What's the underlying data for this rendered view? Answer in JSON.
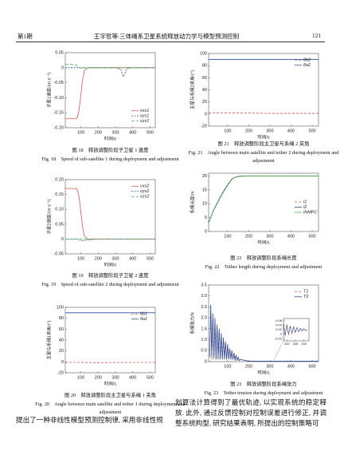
{
  "header": {
    "issue": "第1期",
    "running_title": "王宇哲等:三体绳系卫星系统释放动力学与模型预测控制",
    "page": "121"
  },
  "body_text": {
    "left": "提出了一种非线性模型预测控制律, 采用非线性规",
    "right": "划算法计算得到了最优轨迹, 以实现系统的稳定释放. 此外, 通过反馈控制对控制误差进行修正, 并调整系统构型. 研究结果表明, 所提出的控制策略可"
  },
  "chart_data": [
    {
      "type": "line",
      "xlabel": "时间/s",
      "ylabel": "子星1速度/(m·s⁻¹)",
      "xlim": [
        10,
        530
      ],
      "ylim": [
        -0.2,
        0.05
      ],
      "xticks": [
        100,
        200,
        300,
        400,
        500
      ],
      "yticks": [
        0.05,
        0,
        -0.05,
        {
          "value": -0.1,
          "label": "-0.10"
        },
        -0.15,
        {
          "value": -0.2,
          "label": "-0.20"
        }
      ],
      "legend": "lower right",
      "x": [
        10,
        40,
        70,
        80,
        90,
        100,
        110,
        120,
        140,
        200,
        300,
        330,
        345,
        355,
        365,
        380,
        420,
        530
      ],
      "series": [
        {
          "name": "vxs1",
          "color": "#d9534f",
          "values": [
            -0.17,
            -0.17,
            -0.17,
            -0.165,
            -0.14,
            -0.09,
            -0.04,
            -0.01,
            0,
            0,
            0,
            0,
            0,
            0,
            0,
            0,
            0,
            0
          ]
        },
        {
          "name": "vys1",
          "color": "#2c4f9e",
          "dash": "2,1.5",
          "values": [
            0,
            0,
            0,
            0,
            0,
            0,
            0,
            0,
            0,
            0,
            0,
            -0.005,
            -0.03,
            -0.02,
            -0.005,
            0,
            0,
            0
          ]
        },
        {
          "name": "vzs1",
          "color": "#4caf50",
          "dash": "4,2",
          "values": [
            0.01,
            0.012,
            0.01,
            0.005,
            0,
            -0.002,
            0,
            0,
            0,
            0,
            0,
            0,
            0,
            0,
            0,
            0,
            0,
            0
          ]
        }
      ],
      "caption_cn": "图 18　释放调整阶段子卫星 1 速度",
      "caption_en": "Fig. 18　Speed of sub-satellite 1 during deployment and adjustment"
    },
    {
      "type": "line",
      "xlabel": "时间/s",
      "ylabel": "子星2速度/(m·s⁻¹)",
      "xlim": [
        10,
        530
      ],
      "ylim": [
        -0.05,
        0.2
      ],
      "xticks": [
        100,
        200,
        300,
        400,
        500
      ],
      "yticks": [
        {
          "value": 0.2,
          "label": "0.20"
        },
        0.15,
        {
          "value": 0.1,
          "label": "0.10"
        },
        0.05,
        0,
        -0.05
      ],
      "legend": "upper right",
      "x": [
        10,
        40,
        70,
        80,
        90,
        100,
        110,
        120,
        140,
        200,
        300,
        330,
        345,
        355,
        365,
        380,
        420,
        530
      ],
      "series": [
        {
          "name": "vxs2",
          "color": "#d9534f",
          "values": [
            0.17,
            0.17,
            0.17,
            0.165,
            0.14,
            0.09,
            0.04,
            0.01,
            0,
            0,
            0,
            0,
            0,
            0,
            0,
            0,
            0,
            0
          ]
        },
        {
          "name": "vys2",
          "color": "#2c4f9e",
          "dash": "2,1.5",
          "values": [
            0,
            0,
            0,
            0,
            -0.003,
            -0.005,
            -0.006,
            -0.005,
            -0.003,
            0,
            0,
            0,
            0,
            0,
            0,
            0,
            0,
            0
          ]
        },
        {
          "name": "vzs2",
          "color": "#4caf50",
          "dash": "4,2",
          "values": [
            0,
            0,
            0,
            0,
            0.002,
            0,
            -0.002,
            0,
            0,
            0,
            0,
            0,
            0,
            0,
            0,
            0,
            0,
            0
          ]
        }
      ],
      "caption_cn": "图 19　释放调整阶段子卫星 2 速度",
      "caption_en": "Fig. 19　Speed of sub-satellite 2 during deployment and adjustment"
    },
    {
      "type": "line",
      "xlabel": "时间/s",
      "ylabel": "主星与系绳1夹角/(°)",
      "xlim": [
        10,
        530
      ],
      "ylim": [
        -20,
        100
      ],
      "xticks": [
        100,
        200,
        300,
        400,
        500
      ],
      "yticks": [
        100,
        80,
        60,
        40,
        20,
        0,
        -20
      ],
      "legend": "upper right",
      "x": [
        10,
        100,
        200,
        300,
        400,
        530
      ],
      "series": [
        {
          "name": "θb1",
          "color": "#d9534f",
          "dash": "3,2",
          "values": [
            -1,
            -1,
            -1.5,
            -1,
            -1,
            -1
          ]
        },
        {
          "name": "θa1",
          "color": "#2c4f9e",
          "values": [
            90,
            90,
            90,
            90,
            90,
            90
          ]
        }
      ],
      "caption_cn": "图 20　释放调整阶段主卫星与系绳 1 夹角",
      "caption_en": "Fig. 20　Angle between main satellite and tether 1 during deployment and adjustment"
    },
    {
      "type": "line",
      "xlabel": "时间/s",
      "ylabel": "主星与系绳2夹角/(°)",
      "xlim": [
        10,
        530
      ],
      "ylim": [
        -20,
        100
      ],
      "xticks": [
        100,
        200,
        300,
        400,
        500
      ],
      "yticks": [
        100,
        80,
        60,
        40,
        20,
        0,
        -20
      ],
      "legend": "upper right",
      "x": [
        10,
        100,
        200,
        300,
        400,
        530
      ],
      "series": [
        {
          "name": "θb2",
          "color": "#d9534f",
          "dash": "3,2",
          "values": [
            2,
            2,
            1.5,
            1,
            1,
            1
          ]
        },
        {
          "name": "θa2",
          "color": "#2c4f9e",
          "values": [
            90,
            90,
            90,
            90,
            90,
            90
          ]
        }
      ],
      "caption_cn": "图 21　释放调整阶段主卫星与系绳 2 夹角",
      "caption_en": "Fig. 21　Angle between main satellite and tether 2 during deployment and adjustment"
    },
    {
      "type": "line",
      "xlabel": "时间/s",
      "ylabel": "系绳长度/m",
      "xlim": [
        10,
        530
      ],
      "ylim": [
        0,
        21
      ],
      "xticks": [
        100,
        200,
        300,
        400,
        500
      ],
      "yticks": [
        0,
        5,
        10,
        15,
        20
      ],
      "legend": "center right",
      "x": [
        10,
        30,
        60,
        90,
        120,
        140,
        160,
        200,
        530
      ],
      "series": [
        {
          "name": "l1",
          "color": "#d9534f",
          "dash": "3,2",
          "values": [
            3,
            7,
            11.5,
            15.5,
            18.8,
            19.6,
            19.9,
            20,
            20
          ]
        },
        {
          "name": "l2",
          "color": "#2c4f9e",
          "values": [
            3,
            7.1,
            11.6,
            15.6,
            18.9,
            19.7,
            19.9,
            20,
            20
          ]
        },
        {
          "name": "lNMPC",
          "color": "#4caf50",
          "values": [
            3.1,
            7.2,
            11.8,
            15.8,
            19,
            19.7,
            20,
            20,
            20
          ]
        }
      ],
      "caption_cn": "图 22　释放调整阶段系绳长度",
      "caption_en": "Fig. 22　Tether length during deployment and adjustment"
    },
    {
      "type": "line",
      "xlabel": "时间/s",
      "ylabel": "系绳张力/N",
      "xlim": [
        10,
        530
      ],
      "ylim": [
        0,
        3.5
      ],
      "xticks": [
        100,
        200,
        300,
        400,
        500
      ],
      "yticks": [
        0,
        0.5,
        {
          "value": 1,
          "label": "1.0"
        },
        1.5,
        {
          "value": 2,
          "label": "2.0"
        },
        2.5,
        {
          "value": 3,
          "label": "3.0"
        },
        3.5
      ],
      "legend": "upper right",
      "x": [
        15,
        20,
        25,
        30,
        35,
        40,
        45,
        50,
        55,
        60,
        65,
        70,
        75,
        80,
        85,
        90,
        95,
        100,
        105,
        110,
        115,
        120,
        125,
        130,
        135,
        140,
        145,
        150,
        155,
        160,
        200,
        300,
        400,
        530
      ],
      "series": [
        {
          "name": "T1",
          "color": "#d9534f",
          "dash": "3,2",
          "values": [
            0.3,
            2.3,
            0.1,
            2.0,
            0.1,
            1.8,
            0.1,
            1.6,
            0.1,
            1.4,
            0.1,
            1.2,
            0.1,
            1.0,
            0.1,
            0.9,
            0.1,
            0.7,
            0.1,
            0.6,
            0.1,
            0.5,
            0.1,
            0.4,
            0.1,
            0.3,
            0.05,
            0.2,
            0.05,
            0.1,
            0.02,
            0.02,
            0.02,
            0.02
          ]
        },
        {
          "name": "T2",
          "color": "#2c4f9e",
          "values": [
            0.2,
            2.6,
            0.2,
            2.2,
            0.2,
            2.0,
            0.1,
            1.7,
            0.1,
            1.5,
            0.1,
            1.3,
            0.1,
            1.1,
            0.1,
            0.9,
            0.1,
            0.8,
            0.1,
            0.6,
            0.1,
            0.5,
            0.1,
            0.4,
            0.05,
            0.3,
            0.05,
            0.2,
            0.05,
            0.1,
            0.02,
            0.02,
            0.02,
            0.02
          ]
        }
      ],
      "inset": {
        "xlim": [
          318,
          333
        ],
        "ylim": [
          -0.03,
          0.07
        ],
        "xticks": [
          320,
          325,
          330
        ],
        "yticks": [
          0.06,
          0.04,
          0.02,
          0,
          -0.02
        ],
        "x": [
          318,
          319,
          320,
          321,
          322,
          323,
          324,
          325,
          326,
          327,
          328,
          329,
          330,
          331,
          332
        ],
        "series": [
          {
            "values": [
              0.05,
              -0.01,
              0.045,
              -0.005,
              0.04,
              0,
              0.035,
              0.005,
              0.03,
              0.01,
              0.028,
              0.012,
              0.025,
              0.015,
              0.022
            ]
          },
          {
            "values": [
              0.045,
              -0.005,
              0.04,
              0,
              0.036,
              0.004,
              0.032,
              0.008,
              0.029,
              0.011,
              0.026,
              0.014,
              0.024,
              0.016,
              0.021
            ]
          }
        ]
      },
      "caption_cn": "图 23　释放调整阶段系绳张力",
      "caption_en": "Fig. 23　Tether tension during deployment and adjustment"
    }
  ]
}
